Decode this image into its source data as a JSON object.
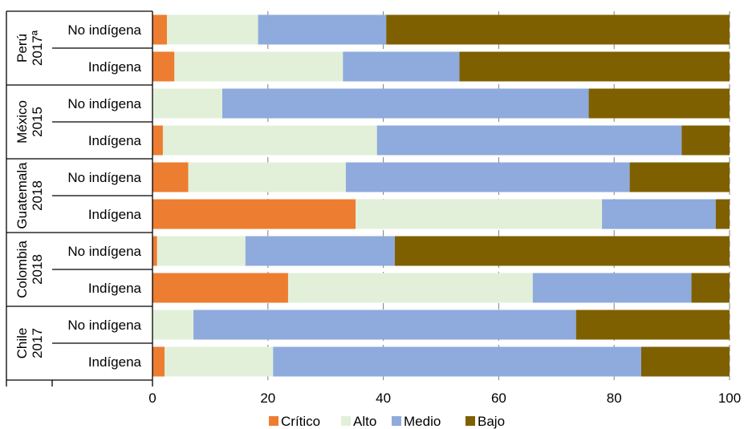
{
  "chart_data": {
    "type": "bar",
    "orientation": "horizontal",
    "stacked": true,
    "groups": [
      {
        "label_lines": [
          "Perú",
          "2017ª"
        ],
        "categories": [
          "No indígena",
          "Indígena"
        ]
      },
      {
        "label_lines": [
          "México",
          "2015"
        ],
        "categories": [
          "No indígena",
          "Indígena"
        ]
      },
      {
        "label_lines": [
          "Guatemala",
          "2018"
        ],
        "categories": [
          "No indígena",
          "Indígena"
        ]
      },
      {
        "label_lines": [
          "Colombia",
          "2018"
        ],
        "categories": [
          "No indígena",
          "Indígena"
        ]
      },
      {
        "label_lines": [
          "Chile",
          "2017"
        ],
        "categories": [
          "No indígena",
          "Indígena"
        ]
      }
    ],
    "categories": [
      "Perú 2017ª – No indígena",
      "Perú 2017ª – Indígena",
      "México 2015 – No indígena",
      "México 2015 – Indígena",
      "Guatemala 2018 – No indígena",
      "Guatemala 2018 – Indígena",
      "Colombia 2018 – No indígena",
      "Colombia 2018 – Indígena",
      "Chile 2017 – No indígena",
      "Chile 2017 – Indígena"
    ],
    "series": [
      {
        "name": "Crítico",
        "color": "#ED7D31",
        "values": [
          2.5,
          3.8,
          0.0,
          1.8,
          6.2,
          35.2,
          0.8,
          23.5,
          0.0,
          2.1
        ]
      },
      {
        "name": "Alto",
        "color": "#E2F0D9",
        "values": [
          15.8,
          29.2,
          12.1,
          37.1,
          27.3,
          42.7,
          15.3,
          42.4,
          7.1,
          18.8
        ]
      },
      {
        "name": "Medio",
        "color": "#8FAADC",
        "values": [
          22.2,
          20.2,
          63.5,
          52.8,
          49.2,
          19.7,
          25.9,
          27.5,
          66.3,
          63.8
        ]
      },
      {
        "name": "Bajo",
        "color": "#7F6000",
        "values": [
          59.5,
          46.8,
          24.4,
          8.3,
          17.3,
          2.4,
          58.0,
          6.6,
          26.6,
          15.3
        ]
      }
    ],
    "xlim": [
      0,
      100
    ],
    "xticks": [
      "0",
      "20",
      "40",
      "60",
      "80",
      "100"
    ],
    "grid": "vertical dashed",
    "legend_position": "bottom"
  }
}
